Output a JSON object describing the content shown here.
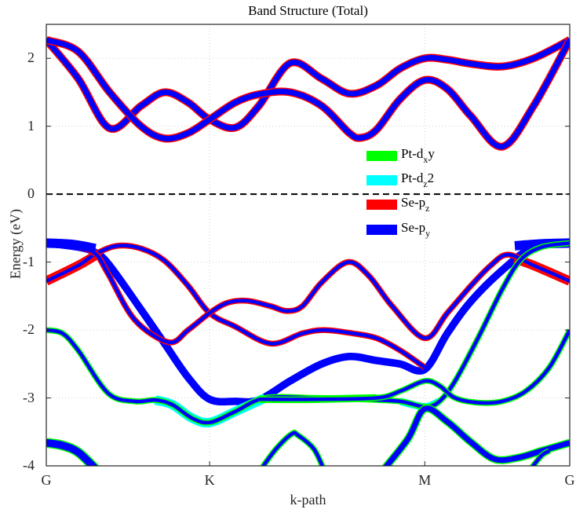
{
  "chart_data": {
    "type": "line",
    "title": "Band Structure (Total)",
    "xlabel": "k-path",
    "ylabel": "Energy (eV)",
    "xlim": [
      0,
      1
    ],
    "ylim": [
      -4,
      2.5
    ],
    "yticks": [
      -4,
      -3,
      -2,
      -1,
      0,
      1,
      2
    ],
    "ytick_labels": [
      "-4",
      "-3",
      "-2",
      "-1",
      "0",
      "1",
      "2"
    ],
    "xticks": [
      0,
      0.312,
      0.723,
      1
    ],
    "xtick_labels": [
      "G",
      "K",
      "M",
      "G"
    ],
    "grid": true,
    "fermi_level": 0,
    "legend_position": "center-right",
    "legend": [
      {
        "base": "Pt-d",
        "sub": "x",
        "post": "y",
        "color": "#00ff00"
      },
      {
        "base": "Pt-d",
        "sub": "z",
        "post": "2",
        "color": "#00ffff"
      },
      {
        "base": "Se-p",
        "sub": "z",
        "post": "",
        "color": "#ff0000"
      },
      {
        "base": "Se-p",
        "sub": "y",
        "post": "",
        "color": "#0000ff"
      }
    ],
    "bands": [
      {
        "color": "#0000ff",
        "edge": "#ff0000",
        "weight": 2,
        "points": [
          [
            0,
            2.27
          ],
          [
            0.061,
            1.7
          ],
          [
            0.121,
            0.97
          ],
          [
            0.181,
            1.3
          ],
          [
            0.226,
            1.5
          ],
          [
            0.271,
            1.35
          ],
          [
            0.312,
            1.1
          ],
          [
            0.361,
            0.98
          ],
          [
            0.406,
            1.3
          ],
          [
            0.466,
            1.93
          ],
          [
            0.526,
            1.7
          ],
          [
            0.579,
            1.48
          ],
          [
            0.631,
            1.6
          ],
          [
            0.676,
            1.85
          ],
          [
            0.723,
            2.0
          ],
          [
            0.766,
            1.98
          ],
          [
            0.811,
            1.92
          ],
          [
            0.871,
            1.88
          ],
          [
            0.931,
            2.0
          ],
          [
            1,
            2.27
          ]
        ]
      },
      {
        "color": "#0000ff",
        "edge": "#ff0000",
        "weight": 2,
        "points": [
          [
            0,
            2.27
          ],
          [
            0.061,
            2.1
          ],
          [
            0.121,
            1.5
          ],
          [
            0.181,
            1.0
          ],
          [
            0.226,
            0.82
          ],
          [
            0.271,
            0.9
          ],
          [
            0.312,
            1.1
          ],
          [
            0.361,
            1.35
          ],
          [
            0.406,
            1.47
          ],
          [
            0.466,
            1.5
          ],
          [
            0.526,
            1.3
          ],
          [
            0.579,
            0.9
          ],
          [
            0.601,
            0.83
          ],
          [
            0.631,
            0.95
          ],
          [
            0.676,
            1.4
          ],
          [
            0.723,
            1.68
          ],
          [
            0.766,
            1.55
          ],
          [
            0.811,
            1.15
          ],
          [
            0.871,
            0.7
          ],
          [
            0.931,
            1.3
          ],
          [
            1,
            2.27
          ]
        ]
      },
      {
        "color": "#0000ff",
        "edge": "",
        "weight": 3,
        "points": [
          [
            0,
            -0.72
          ],
          [
            0.061,
            -0.78
          ],
          [
            0.094,
            -0.86
          ],
          [
            0.121,
            -1.05
          ],
          [
            0.181,
            -1.7
          ],
          [
            0.226,
            -2.2
          ],
          [
            0.271,
            -2.7
          ],
          [
            0.312,
            -3.02
          ],
          [
            0.361,
            -3.05
          ],
          [
            0.406,
            -3.03
          ],
          [
            0.466,
            -2.75
          ],
          [
            0.526,
            -2.5
          ],
          [
            0.579,
            -2.39
          ],
          [
            0.631,
            -2.45
          ],
          [
            0.676,
            -2.5
          ],
          [
            0.723,
            -2.58
          ],
          [
            0.766,
            -2.05
          ],
          [
            0.811,
            -1.58
          ],
          [
            0.871,
            -1.12
          ],
          [
            0.931,
            -0.78
          ],
          [
            1,
            -0.72
          ]
        ]
      },
      {
        "color": "#ff0000",
        "edge": "",
        "weight": 4,
        "points": [
          [
            0,
            -1.28
          ],
          [
            0.061,
            -1.05
          ],
          [
            0.094,
            -0.9
          ]
        ]
      },
      {
        "color": "#ff0000",
        "edge": "",
        "weight": 4,
        "points": [
          [
            0.895,
            -0.95
          ],
          [
            0.931,
            -1.05
          ],
          [
            1,
            -1.28
          ]
        ]
      },
      {
        "color": "#0000ff",
        "edge": "#ff0000",
        "weight": 1,
        "points": [
          [
            0,
            -1.28
          ],
          [
            0.061,
            -1.05
          ],
          [
            0.094,
            -0.88
          ],
          [
            0.136,
            -0.76
          ],
          [
            0.181,
            -0.8
          ],
          [
            0.226,
            -0.98
          ],
          [
            0.271,
            -1.35
          ],
          [
            0.312,
            -1.75
          ],
          [
            0.361,
            -1.95
          ],
          [
            0.429,
            -2.2
          ],
          [
            0.489,
            -2.05
          ],
          [
            0.531,
            -2.0
          ],
          [
            0.586,
            -2.05
          ],
          [
            0.631,
            -2.12
          ],
          [
            0.676,
            -2.3
          ],
          [
            0.723,
            -2.55
          ]
        ]
      },
      {
        "color": "#0000ff",
        "edge": "#ff0000",
        "weight": 1,
        "points": [
          [
            0,
            -0.72
          ],
          [
            0.061,
            -0.78
          ],
          [
            0.094,
            -0.88
          ],
          [
            0.118,
            -1.17
          ],
          [
            0.169,
            -1.85
          ],
          [
            0.234,
            -2.18
          ],
          [
            0.271,
            -2.0
          ],
          [
            0.312,
            -1.75
          ],
          [
            0.346,
            -1.6
          ],
          [
            0.384,
            -1.57
          ],
          [
            0.429,
            -1.65
          ],
          [
            0.459,
            -1.72
          ],
          [
            0.489,
            -1.65
          ],
          [
            0.526,
            -1.3
          ],
          [
            0.576,
            -1.0
          ],
          [
            0.616,
            -1.2
          ],
          [
            0.661,
            -1.65
          ],
          [
            0.723,
            -2.12
          ],
          [
            0.766,
            -1.75
          ],
          [
            0.811,
            -1.35
          ],
          [
            0.849,
            -1.05
          ],
          [
            0.882,
            -0.89
          ],
          [
            0.931,
            -1.05
          ],
          [
            1,
            -1.28
          ]
        ]
      },
      {
        "color": "#0000ff",
        "edge": "",
        "weight": 4,
        "points": [
          [
            0,
            -0.72
          ],
          [
            0.05,
            -0.74
          ],
          [
            0.094,
            -0.8
          ]
        ]
      },
      {
        "color": "#0000ff",
        "edge": "",
        "weight": 4,
        "points": [
          [
            0.895,
            -0.76
          ],
          [
            0.95,
            -0.73
          ],
          [
            1,
            -0.72
          ]
        ]
      },
      {
        "color": "#00ffff",
        "edge": "",
        "weight": 4,
        "points": [
          [
            0.208,
            -3.03
          ],
          [
            0.241,
            -3.1
          ],
          [
            0.279,
            -3.3
          ],
          [
            0.313,
            -3.36
          ],
          [
            0.361,
            -3.2
          ],
          [
            0.418,
            -3.0
          ]
        ]
      },
      {
        "color": "#00ffff",
        "edge": "",
        "weight": 3,
        "points": [
          [
            0.676,
            -3.05
          ],
          [
            0.723,
            -3.13
          ],
          [
            0.751,
            -3.05
          ]
        ]
      },
      {
        "color": "#00ff00",
        "edge": "",
        "weight": 3,
        "points": [
          [
            0.406,
            -3.02
          ],
          [
            0.511,
            -3.02
          ],
          [
            0.631,
            -3.0
          ]
        ]
      },
      {
        "color": "#0000ff",
        "edge": "#00ff00",
        "weight": 1,
        "points": [
          [
            0,
            -2.0
          ],
          [
            0.031,
            -2.05
          ],
          [
            0.061,
            -2.3
          ],
          [
            0.118,
            -2.93
          ],
          [
            0.169,
            -3.05
          ],
          [
            0.208,
            -3.03
          ],
          [
            0.241,
            -3.1
          ],
          [
            0.279,
            -3.3
          ],
          [
            0.313,
            -3.36
          ],
          [
            0.361,
            -3.2
          ],
          [
            0.418,
            -3.0
          ],
          [
            0.511,
            -3.0
          ],
          [
            0.601,
            -3.02
          ],
          [
            0.676,
            -3.05
          ],
          [
            0.723,
            -3.13
          ],
          [
            0.751,
            -3.05
          ],
          [
            0.781,
            -2.75
          ],
          [
            0.826,
            -2.1
          ],
          [
            0.871,
            -1.4
          ],
          [
            0.906,
            -0.97
          ],
          [
            0.946,
            -0.78
          ],
          [
            1,
            -0.72
          ]
        ]
      },
      {
        "color": "#0000ff",
        "edge": "#00ff00",
        "weight": 1,
        "points": [
          [
            0.406,
            -3.02
          ],
          [
            0.511,
            -3.02
          ],
          [
            0.631,
            -3.0
          ],
          [
            0.676,
            -2.9
          ],
          [
            0.723,
            -2.75
          ],
          [
            0.751,
            -2.82
          ],
          [
            0.781,
            -3.0
          ],
          [
            0.826,
            -3.07
          ],
          [
            0.871,
            -3.05
          ],
          [
            0.916,
            -2.9
          ],
          [
            0.961,
            -2.55
          ],
          [
            1,
            -2.0
          ]
        ]
      },
      {
        "color": "#0000ff",
        "edge": "#00ff00",
        "weight": 3,
        "points": [
          [
            0,
            -3.66
          ],
          [
            0.031,
            -3.7
          ],
          [
            0.061,
            -3.8
          ],
          [
            0.095,
            -4.05
          ]
        ]
      },
      {
        "color": "#0000ff",
        "edge": "#00ff00",
        "weight": 1,
        "points": [
          [
            0.41,
            -4.05
          ],
          [
            0.439,
            -3.75
          ],
          [
            0.469,
            -3.53
          ],
          [
            0.481,
            -3.55
          ],
          [
            0.511,
            -3.75
          ],
          [
            0.53,
            -4.05
          ]
        ]
      },
      {
        "color": "#0000ff",
        "edge": "#00ff00",
        "weight": 2,
        "points": [
          [
            0.645,
            -4.05
          ],
          [
            0.691,
            -3.6
          ],
          [
            0.723,
            -3.16
          ],
          [
            0.766,
            -3.35
          ],
          [
            0.811,
            -3.65
          ],
          [
            0.856,
            -3.9
          ],
          [
            0.901,
            -3.88
          ],
          [
            0.946,
            -3.78
          ],
          [
            1,
            -3.66
          ]
        ]
      },
      {
        "color": "#0000ff",
        "edge": "#00ff00",
        "weight": 1,
        "points": [
          [
            0.925,
            -4.05
          ],
          [
            0.946,
            -3.85
          ],
          [
            0.961,
            -3.78
          ]
        ]
      }
    ]
  }
}
